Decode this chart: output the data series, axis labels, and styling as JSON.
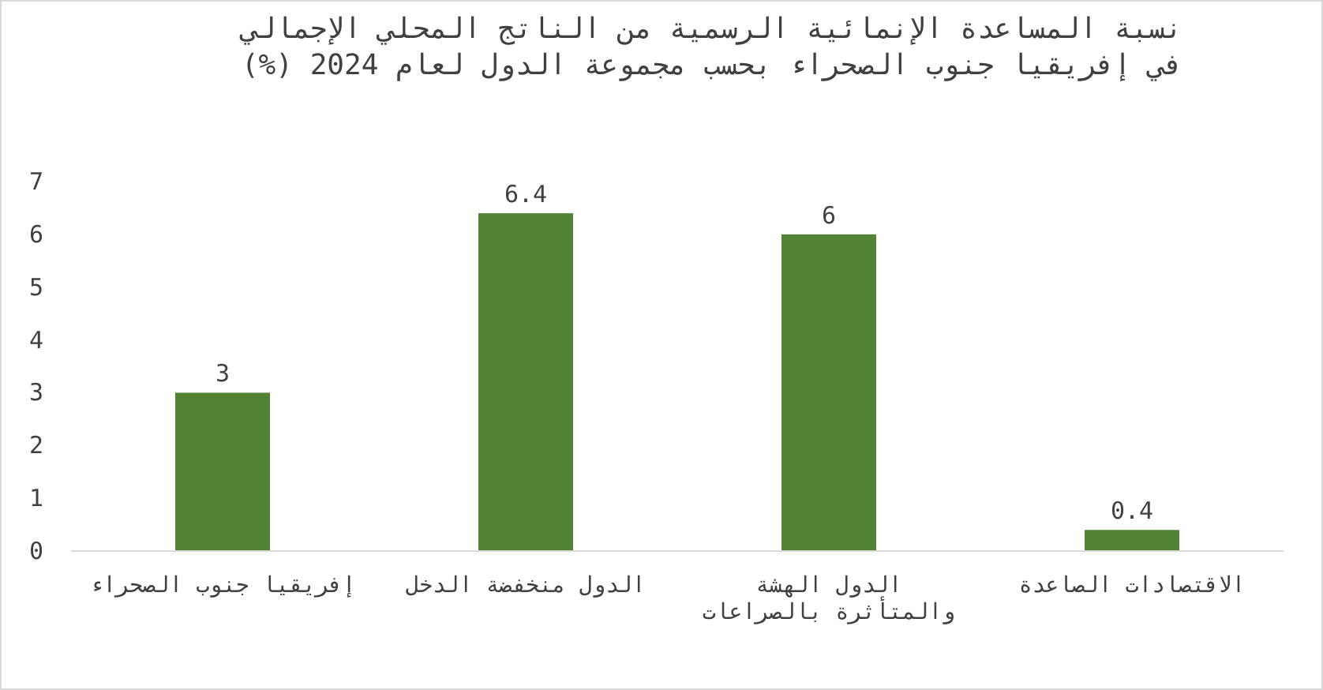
{
  "chart_data": {
    "type": "bar",
    "title": "نسبة المساعدة الإنمائية الرسمية من الناتج المحلي الإجمالي في إفريقيا جنوب الصحراء بحسب مجموعة الدول لعام 2024 (%)",
    "categories": [
      "إفريقيا جنوب الصحراء",
      "الدول منخفضة الدخل",
      "الدول الهشة والمتأثرة بالصراعات",
      "الاقتصادات الصاعدة"
    ],
    "values": [
      3,
      6.4,
      6,
      0.4
    ],
    "color": "#548235",
    "ylim": [
      0,
      7
    ],
    "yticks": [
      0,
      1,
      2,
      3,
      4,
      5,
      6,
      7
    ],
    "data_labels": true
  }
}
